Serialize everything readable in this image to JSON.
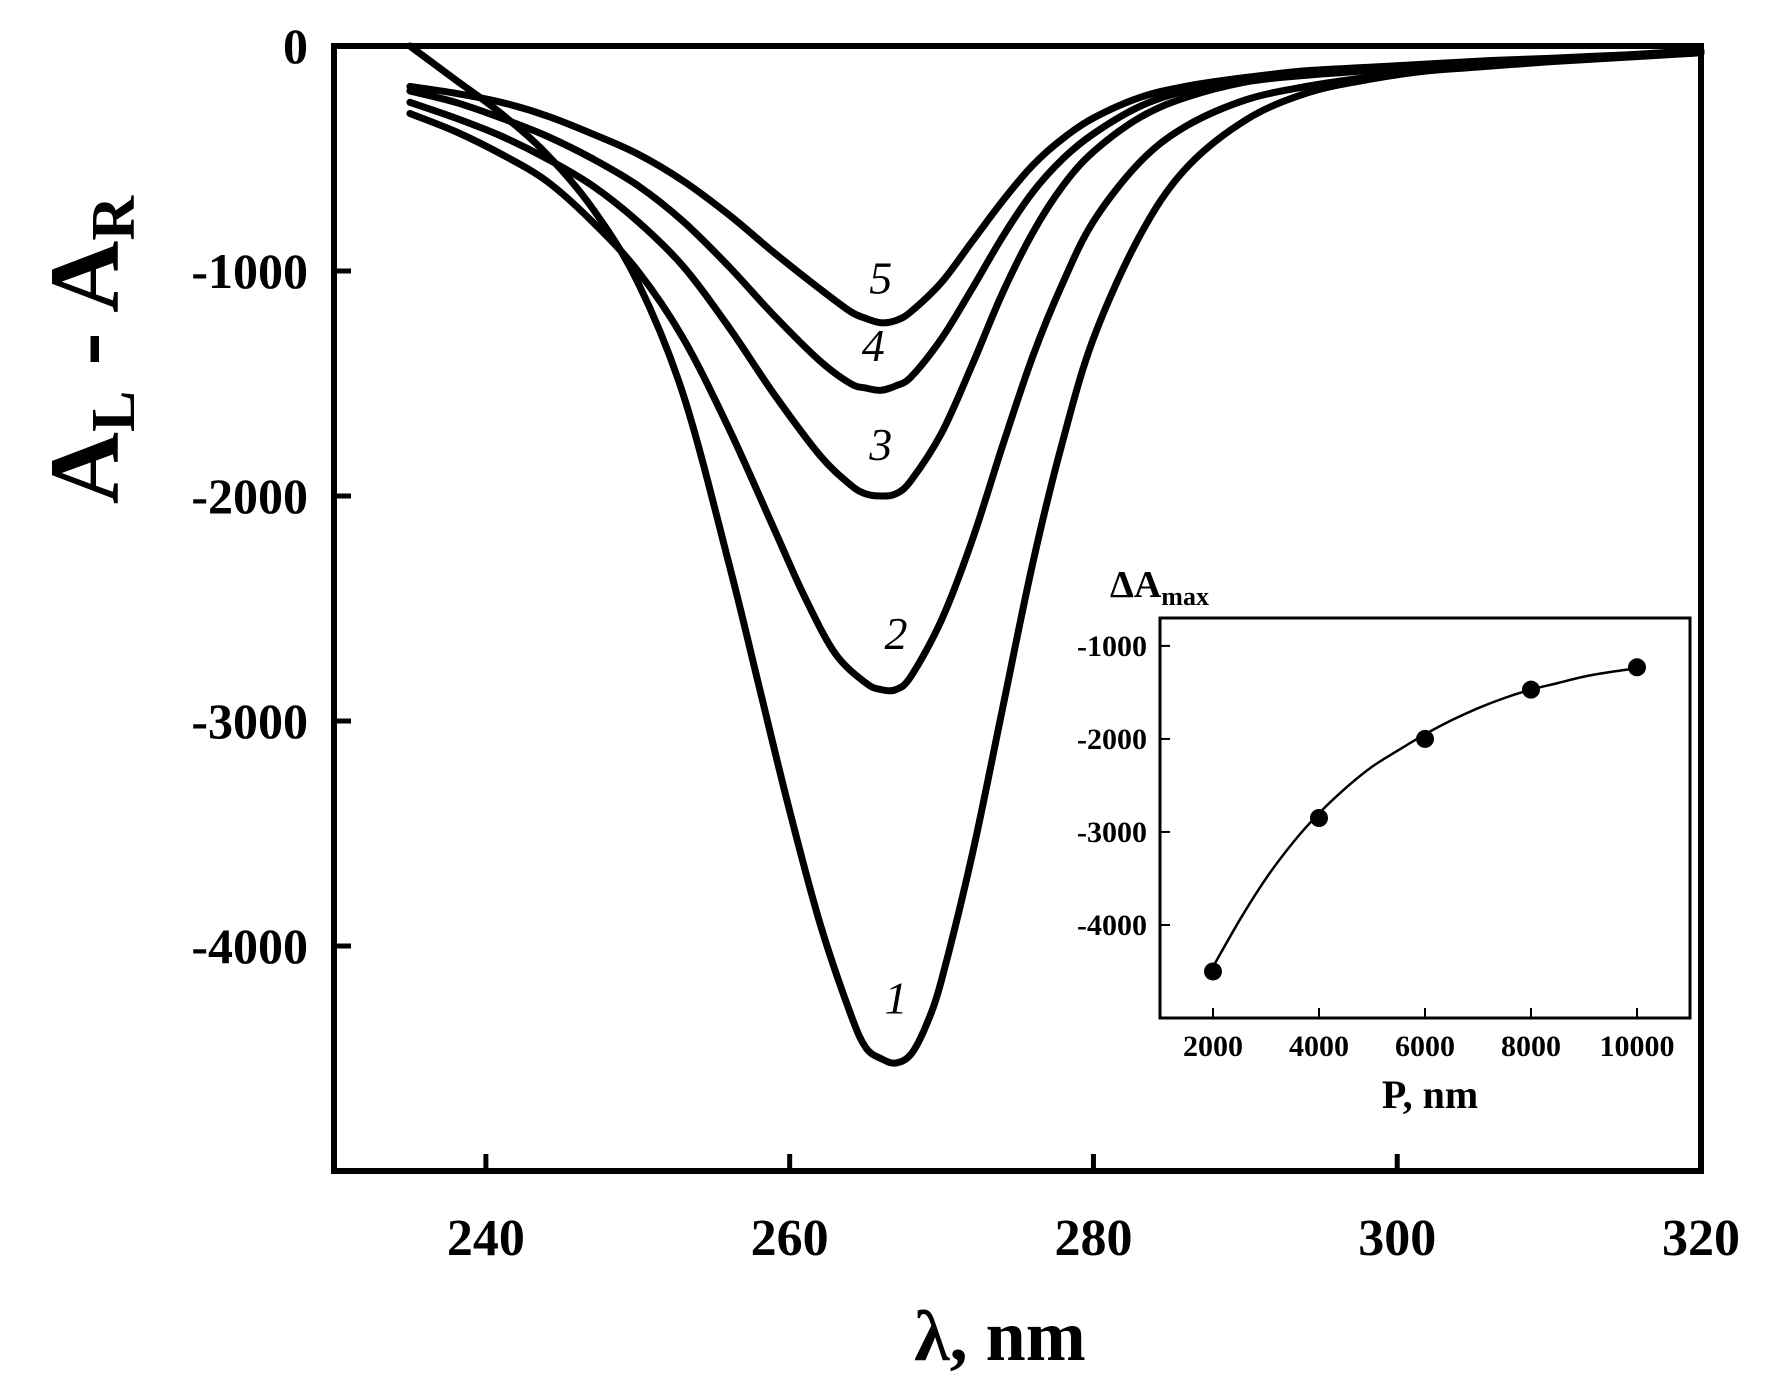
{
  "chart_data": [
    {
      "type": "line",
      "title": "",
      "xlabel_main": "λ",
      "xlabel_unit": ", nm",
      "ylabel_a": "A",
      "ylabel_a_sub": "L",
      "ylabel_sep": " - ",
      "ylabel_b": "A",
      "ylabel_b_sub": "R",
      "xlim": [
        230,
        320
      ],
      "ylim": [
        -5000,
        0
      ],
      "xticks": [
        240,
        260,
        280,
        300,
        320
      ],
      "xtick_labels": [
        "240",
        "260",
        "280",
        "300",
        "320"
      ],
      "yticks": [
        0,
        -1000,
        -2000,
        -3000,
        -4000
      ],
      "ytick_labels": [
        "0",
        "-1000",
        "-2000",
        "-3000",
        "-4000"
      ],
      "grid": false,
      "series": [
        {
          "name": "1",
          "label": "1",
          "x": [
            235,
            238,
            241,
            244,
            247,
            250,
            253,
            256,
            258,
            260,
            262,
            264,
            265,
            266,
            267,
            268,
            269,
            270,
            272,
            274,
            276,
            278,
            280,
            283,
            286,
            290,
            294,
            298,
            302,
            306,
            310,
            315,
            320
          ],
          "y": [
            0,
            -150,
            -300,
            -480,
            -720,
            -1050,
            -1550,
            -2300,
            -2850,
            -3400,
            -3900,
            -4300,
            -4450,
            -4500,
            -4520,
            -4480,
            -4350,
            -4150,
            -3600,
            -2950,
            -2300,
            -1750,
            -1300,
            -850,
            -550,
            -330,
            -210,
            -150,
            -110,
            -85,
            -65,
            -40,
            -20
          ],
          "label_at": [
            267,
            -4300
          ]
        },
        {
          "name": "2",
          "label": "2",
          "x": [
            235,
            238,
            241,
            244,
            247,
            250,
            253,
            256,
            259,
            261,
            263,
            265,
            266,
            267,
            268,
            270,
            272,
            274,
            276,
            278,
            280,
            283,
            286,
            290,
            294,
            298,
            302,
            306,
            310,
            315,
            320
          ],
          "y": [
            -300,
            -380,
            -480,
            -600,
            -780,
            -1000,
            -1300,
            -1700,
            -2150,
            -2450,
            -2700,
            -2830,
            -2860,
            -2860,
            -2800,
            -2550,
            -2200,
            -1780,
            -1380,
            -1050,
            -780,
            -520,
            -360,
            -240,
            -180,
            -140,
            -110,
            -90,
            -70,
            -50,
            -30
          ],
          "label_at": [
            267,
            -2680
          ]
        },
        {
          "name": "3",
          "label": "3",
          "x": [
            235,
            238,
            241,
            244,
            247,
            250,
            253,
            256,
            259,
            262,
            264,
            265,
            266,
            267,
            268,
            270,
            272,
            274,
            276,
            278,
            280,
            283,
            286,
            290,
            294,
            298,
            302,
            306,
            310,
            315,
            320
          ],
          "y": [
            -250,
            -320,
            -400,
            -500,
            -620,
            -780,
            -980,
            -1250,
            -1550,
            -1820,
            -1950,
            -1990,
            -2000,
            -1990,
            -1930,
            -1720,
            -1420,
            -1100,
            -830,
            -620,
            -470,
            -320,
            -230,
            -160,
            -130,
            -110,
            -90,
            -75,
            -60,
            -45,
            -30
          ],
          "label_at": [
            266,
            -1840
          ]
        },
        {
          "name": "4",
          "label": "4",
          "x": [
            235,
            238,
            241,
            244,
            247,
            250,
            253,
            256,
            259,
            262,
            264,
            265,
            266,
            267,
            268,
            270,
            272,
            274,
            276,
            278,
            280,
            283,
            286,
            290,
            294,
            298,
            302,
            306,
            310,
            315,
            320
          ],
          "y": [
            -200,
            -250,
            -320,
            -400,
            -500,
            -620,
            -780,
            -980,
            -1200,
            -1400,
            -1500,
            -1520,
            -1530,
            -1510,
            -1470,
            -1300,
            -1080,
            -850,
            -650,
            -500,
            -390,
            -270,
            -200,
            -150,
            -120,
            -100,
            -85,
            -70,
            -60,
            -45,
            -30
          ],
          "label_at": [
            265.5,
            -1400
          ]
        },
        {
          "name": "5",
          "label": "5",
          "x": [
            235,
            238,
            241,
            244,
            247,
            250,
            253,
            256,
            259,
            262,
            264,
            265,
            266,
            267,
            268,
            270,
            272,
            274,
            276,
            278,
            280,
            283,
            286,
            290,
            294,
            298,
            302,
            306,
            310,
            315,
            320
          ],
          "y": [
            -180,
            -210,
            -250,
            -310,
            -390,
            -480,
            -600,
            -750,
            -920,
            -1080,
            -1180,
            -1210,
            -1230,
            -1220,
            -1180,
            -1050,
            -870,
            -690,
            -530,
            -410,
            -320,
            -230,
            -180,
            -140,
            -110,
            -95,
            -80,
            -65,
            -55,
            -40,
            -30
          ],
          "label_at": [
            266,
            -1100
          ]
        }
      ]
    },
    {
      "type": "scatter",
      "title": "",
      "xlabel": "P, nm",
      "ylabel_main": "ΔA",
      "ylabel_sub": "max",
      "xlim": [
        1000,
        11000
      ],
      "ylim": [
        -5000,
        -700
      ],
      "xticks": [
        2000,
        4000,
        6000,
        8000,
        10000
      ],
      "xtick_labels": [
        "2000",
        "4000",
        "6000",
        "8000",
        "10000"
      ],
      "yticks": [
        -1000,
        -2000,
        -3000,
        -4000
      ],
      "ytick_labels": [
        "-1000",
        "-2000",
        "-3000",
        "-4000"
      ],
      "grid": false,
      "points": {
        "x": [
          2000,
          4000,
          6000,
          8000,
          10000
        ],
        "y": [
          -4500,
          -2850,
          -2000,
          -1470,
          -1230
        ]
      },
      "fit": {
        "x": [
          2000,
          2500,
          3000,
          3500,
          4000,
          4500,
          5000,
          5500,
          6000,
          6500,
          7000,
          7500,
          8000,
          8500,
          9000,
          9500,
          10000
        ],
        "y": [
          -4450,
          -3950,
          -3500,
          -3120,
          -2800,
          -2530,
          -2300,
          -2120,
          -1950,
          -1800,
          -1670,
          -1560,
          -1470,
          -1400,
          -1330,
          -1280,
          -1240
        ]
      }
    }
  ]
}
